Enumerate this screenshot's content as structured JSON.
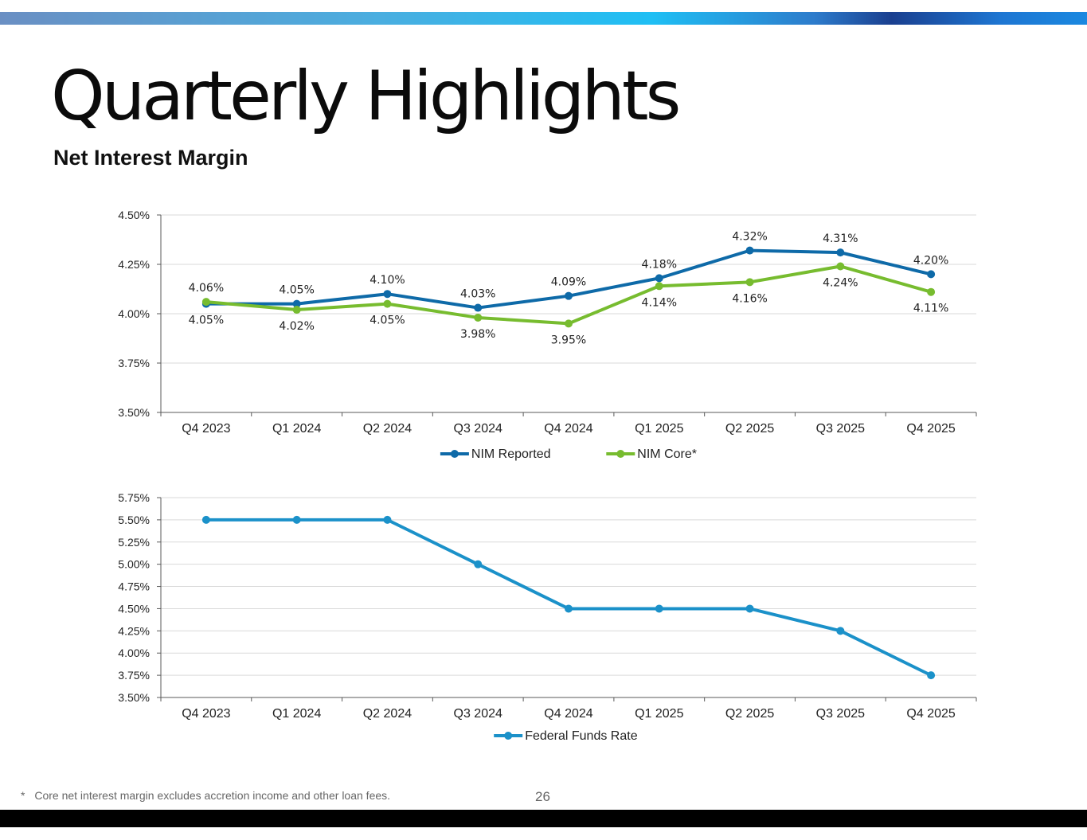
{
  "page": {
    "title": "Quarterly Highlights",
    "subtitle": "Net Interest Margin",
    "footnote_marker": "*",
    "footnote": "Core net interest margin excludes accretion income and other loan fees.",
    "page_number": "26"
  },
  "chart_data": [
    {
      "type": "line",
      "title": "Net Interest Margin",
      "categories": [
        "Q4 2023",
        "Q1 2024",
        "Q2 2024",
        "Q3 2024",
        "Q4 2024",
        "Q1 2025",
        "Q2 2025",
        "Q3 2025",
        "Q4 2025"
      ],
      "ylim": [
        3.5,
        4.5
      ],
      "yticks": [
        "3.50%",
        "3.75%",
        "4.00%",
        "4.25%",
        "4.50%"
      ],
      "ytick_values": [
        3.5,
        3.75,
        4.0,
        4.25,
        4.5
      ],
      "grid": true,
      "legend_position": "bottom-center",
      "series": [
        {
          "name": "NIM Reported",
          "color": "#0e6aa8",
          "values": [
            4.05,
            4.05,
            4.1,
            4.03,
            4.09,
            4.18,
            4.32,
            4.31,
            4.2
          ],
          "labels": [
            "4.05%",
            "4.05%",
            "4.10%",
            "4.03%",
            "4.09%",
            "4.18%",
            "4.32%",
            "4.31%",
            "4.20%"
          ]
        },
        {
          "name": "NIM Core*",
          "color": "#77bc2f",
          "values": [
            4.06,
            4.02,
            4.05,
            3.98,
            3.95,
            4.14,
            4.16,
            4.24,
            4.11
          ],
          "labels": [
            "4.06%",
            "4.02%",
            "4.05%",
            "3.98%",
            "3.95%",
            "4.14%",
            "4.16%",
            "4.24%",
            "4.11%"
          ]
        }
      ]
    },
    {
      "type": "line",
      "title": "Federal Funds Rate",
      "categories": [
        "Q4 2023",
        "Q1 2024",
        "Q2 2024",
        "Q3 2024",
        "Q4 2024",
        "Q1 2025",
        "Q2 2025",
        "Q3 2025",
        "Q4 2025"
      ],
      "ylim": [
        3.5,
        5.75
      ],
      "yticks": [
        "3.50%",
        "3.75%",
        "4.00%",
        "4.25%",
        "4.50%",
        "4.75%",
        "5.00%",
        "5.25%",
        "5.50%",
        "5.75%"
      ],
      "ytick_values": [
        3.5,
        3.75,
        4.0,
        4.25,
        4.5,
        4.75,
        5.0,
        5.25,
        5.5,
        5.75
      ],
      "grid": true,
      "legend_position": "bottom-center",
      "series": [
        {
          "name": "Federal Funds Rate",
          "color": "#1b91c9",
          "values": [
            5.5,
            5.5,
            5.5,
            5.0,
            4.5,
            4.5,
            4.5,
            4.25,
            3.75
          ]
        }
      ]
    }
  ]
}
